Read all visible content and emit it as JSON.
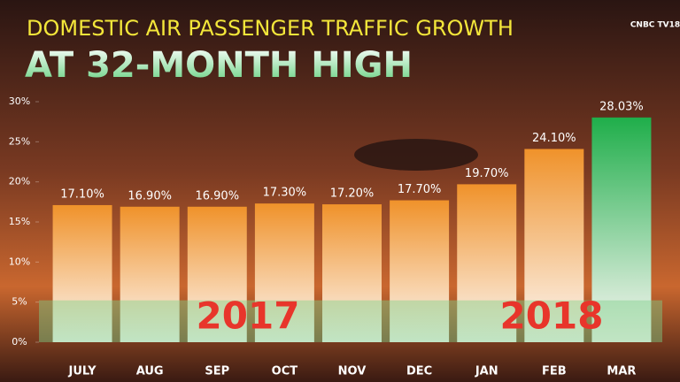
{
  "chart_data": {
    "type": "bar",
    "title": "DOMESTIC AIR PASSENGER TRAFFIC GROWTH",
    "subtitle": "AT 32-MONTH HIGH",
    "logo": "CNBC TV18",
    "categories": [
      "JULY",
      "AUG",
      "SEP",
      "OCT",
      "NOV",
      "DEC",
      "JAN",
      "FEB",
      "MAR"
    ],
    "values": [
      17.1,
      16.9,
      16.9,
      17.3,
      17.2,
      17.7,
      19.7,
      24.1,
      28.03
    ],
    "value_labels": [
      "17.10%",
      "16.90%",
      "16.90%",
      "17.30%",
      "17.20%",
      "17.70%",
      "19.70%",
      "24.10%",
      "28.03%"
    ],
    "colors": [
      "#f0922a",
      "#f0922a",
      "#f0922a",
      "#f0922a",
      "#f0922a",
      "#f0922a",
      "#f0922a",
      "#f0922a",
      "#1fae4a"
    ],
    "annotations": [
      "2017",
      "2018"
    ],
    "ylim": [
      0,
      30
    ],
    "yticks": [
      {
        "value": 0,
        "label": "0%"
      },
      {
        "value": 5,
        "label": "5%"
      },
      {
        "value": 10,
        "label": "10%"
      },
      {
        "value": 15,
        "label": "15%"
      },
      {
        "value": 20,
        "label": "20%"
      },
      {
        "value": 25,
        "label": "25%"
      },
      {
        "value": 30,
        "label": "30%"
      }
    ]
  }
}
